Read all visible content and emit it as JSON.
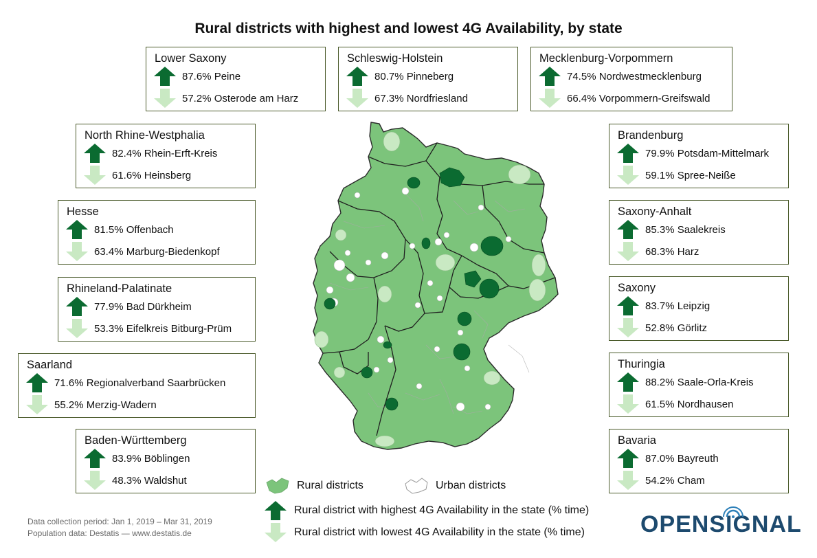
{
  "title": "Rural districts with highest and lowest 4G Availability, by state",
  "colors": {
    "highest": "#0b6b31",
    "lowest": "#c9e9c3",
    "rural": "#7cc47b",
    "urban": "#ffffff",
    "border": "#4a5a2a",
    "brand": "#1d4a6e"
  },
  "states": [
    {
      "name": "Lower Saxony",
      "highest": "87.6% Peine",
      "lowest": "57.2% Osterode am Harz"
    },
    {
      "name": "Schleswig-Holstein",
      "highest": "80.7% Pinneberg",
      "lowest": "67.3% Nordfriesland"
    },
    {
      "name": "Mecklenburg-Vorpommern",
      "highest": "74.5% Nordwestmecklenburg",
      "lowest": "66.4% Vorpommern-Greifswald"
    },
    {
      "name": "North Rhine-Westphalia",
      "highest": "82.4% Rhein-Erft-Kreis",
      "lowest": "61.6% Heinsberg"
    },
    {
      "name": "Hesse",
      "highest": "81.5% Offenbach",
      "lowest": "63.4% Marburg-Biedenkopf"
    },
    {
      "name": "Rhineland-Palatinate",
      "highest": "77.9% Bad Dürkheim",
      "lowest": "53.3% Eifelkreis Bitburg-Prüm"
    },
    {
      "name": "Saarland",
      "highest": "71.6% Regionalverband Saarbrücken",
      "lowest": "55.2% Merzig-Wadern"
    },
    {
      "name": "Baden-Württemberg",
      "highest": "83.9% Böblingen",
      "lowest": "48.3% Waldshut"
    },
    {
      "name": "Brandenburg",
      "highest": "79.9% Potsdam-Mittelmark",
      "lowest": "59.1% Spree-Neiße"
    },
    {
      "name": "Saxony-Anhalt",
      "highest": "85.3% Saalekreis",
      "lowest": "68.3% Harz"
    },
    {
      "name": "Saxony",
      "highest": "83.7% Leipzig",
      "lowest": "52.8% Görlitz"
    },
    {
      "name": "Thuringia",
      "highest": "88.2% Saale-Orla-Kreis",
      "lowest": "61.5% Nordhausen"
    },
    {
      "name": "Bavaria",
      "highest": "87.0% Bayreuth",
      "lowest": "54.2% Cham"
    }
  ],
  "legend": {
    "rural": "Rural districts",
    "urban": "Urban districts",
    "highest": "Rural district with highest 4G Availability in the state (% time)",
    "lowest": "Rural district with lowest 4G Availability in the state (% time)"
  },
  "footnotes": {
    "period": "Data collection period: Jan 1, 2019 – Mar 31, 2019",
    "population": "Population data: Destatis — www.destatis.de"
  },
  "brand": {
    "name": "OPENSIGNAL"
  }
}
